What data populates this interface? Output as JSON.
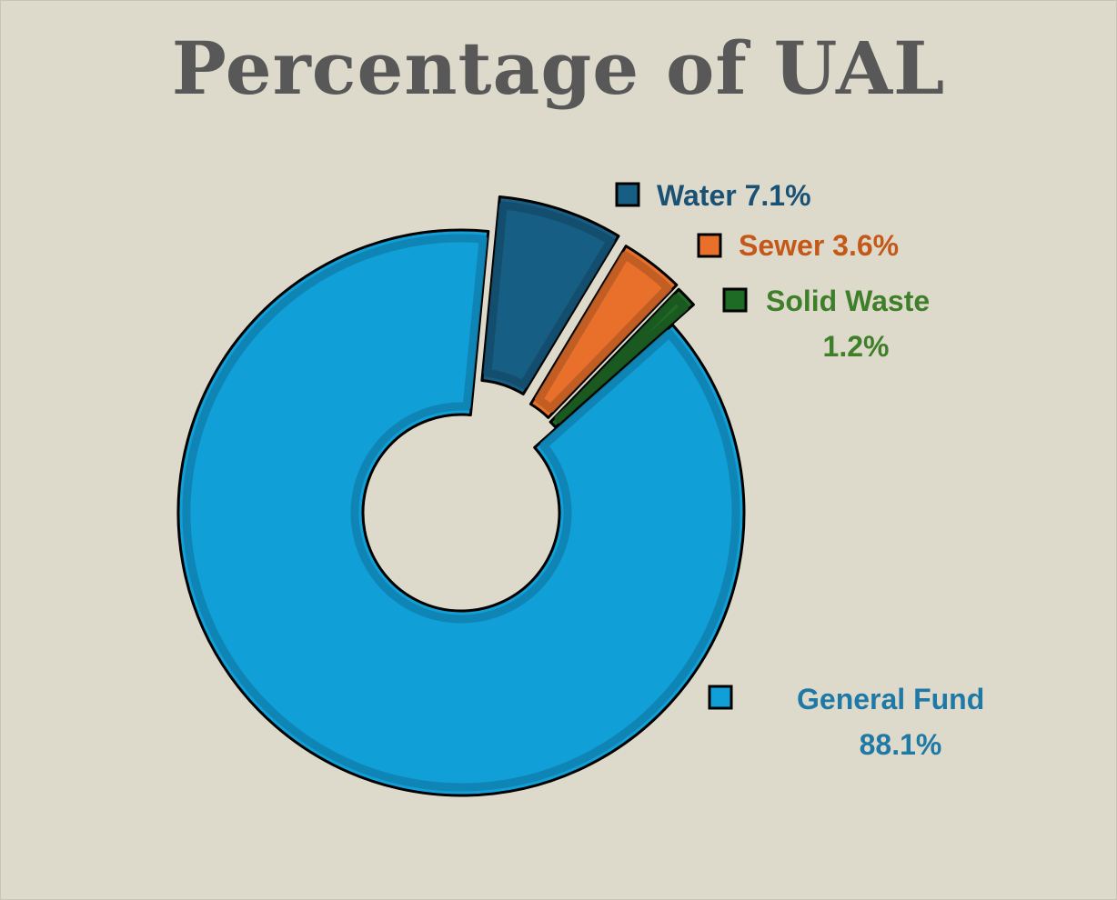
{
  "title": "Percentage of UAL",
  "chart_data": {
    "type": "pie",
    "variant": "donut",
    "title": "Percentage of UAL",
    "slices": [
      {
        "name": "Water",
        "value": 7.1,
        "label": "7.1%",
        "color": "#175e84",
        "text_color": "#1a5276",
        "label_lines": [
          "Water 7.1%"
        ]
      },
      {
        "name": "Sewer",
        "value": 3.6,
        "label": "3.6%",
        "color": "#e8702a",
        "text_color": "#c35818",
        "label_lines": [
          "Sewer 3.6%"
        ]
      },
      {
        "name": "Solid Waste",
        "value": 1.2,
        "label": "1.2%",
        "color": "#1e6b26",
        "text_color": "#3f7f2a",
        "label_lines": [
          "Solid Waste",
          "1.2%"
        ]
      },
      {
        "name": "General Fund",
        "value": 88.1,
        "label": "88.1%",
        "color": "#119fd7",
        "text_color": "#1e79a6",
        "label_lines": [
          "General Fund",
          "88.1%"
        ]
      }
    ],
    "legend": "beside slices (right)"
  }
}
